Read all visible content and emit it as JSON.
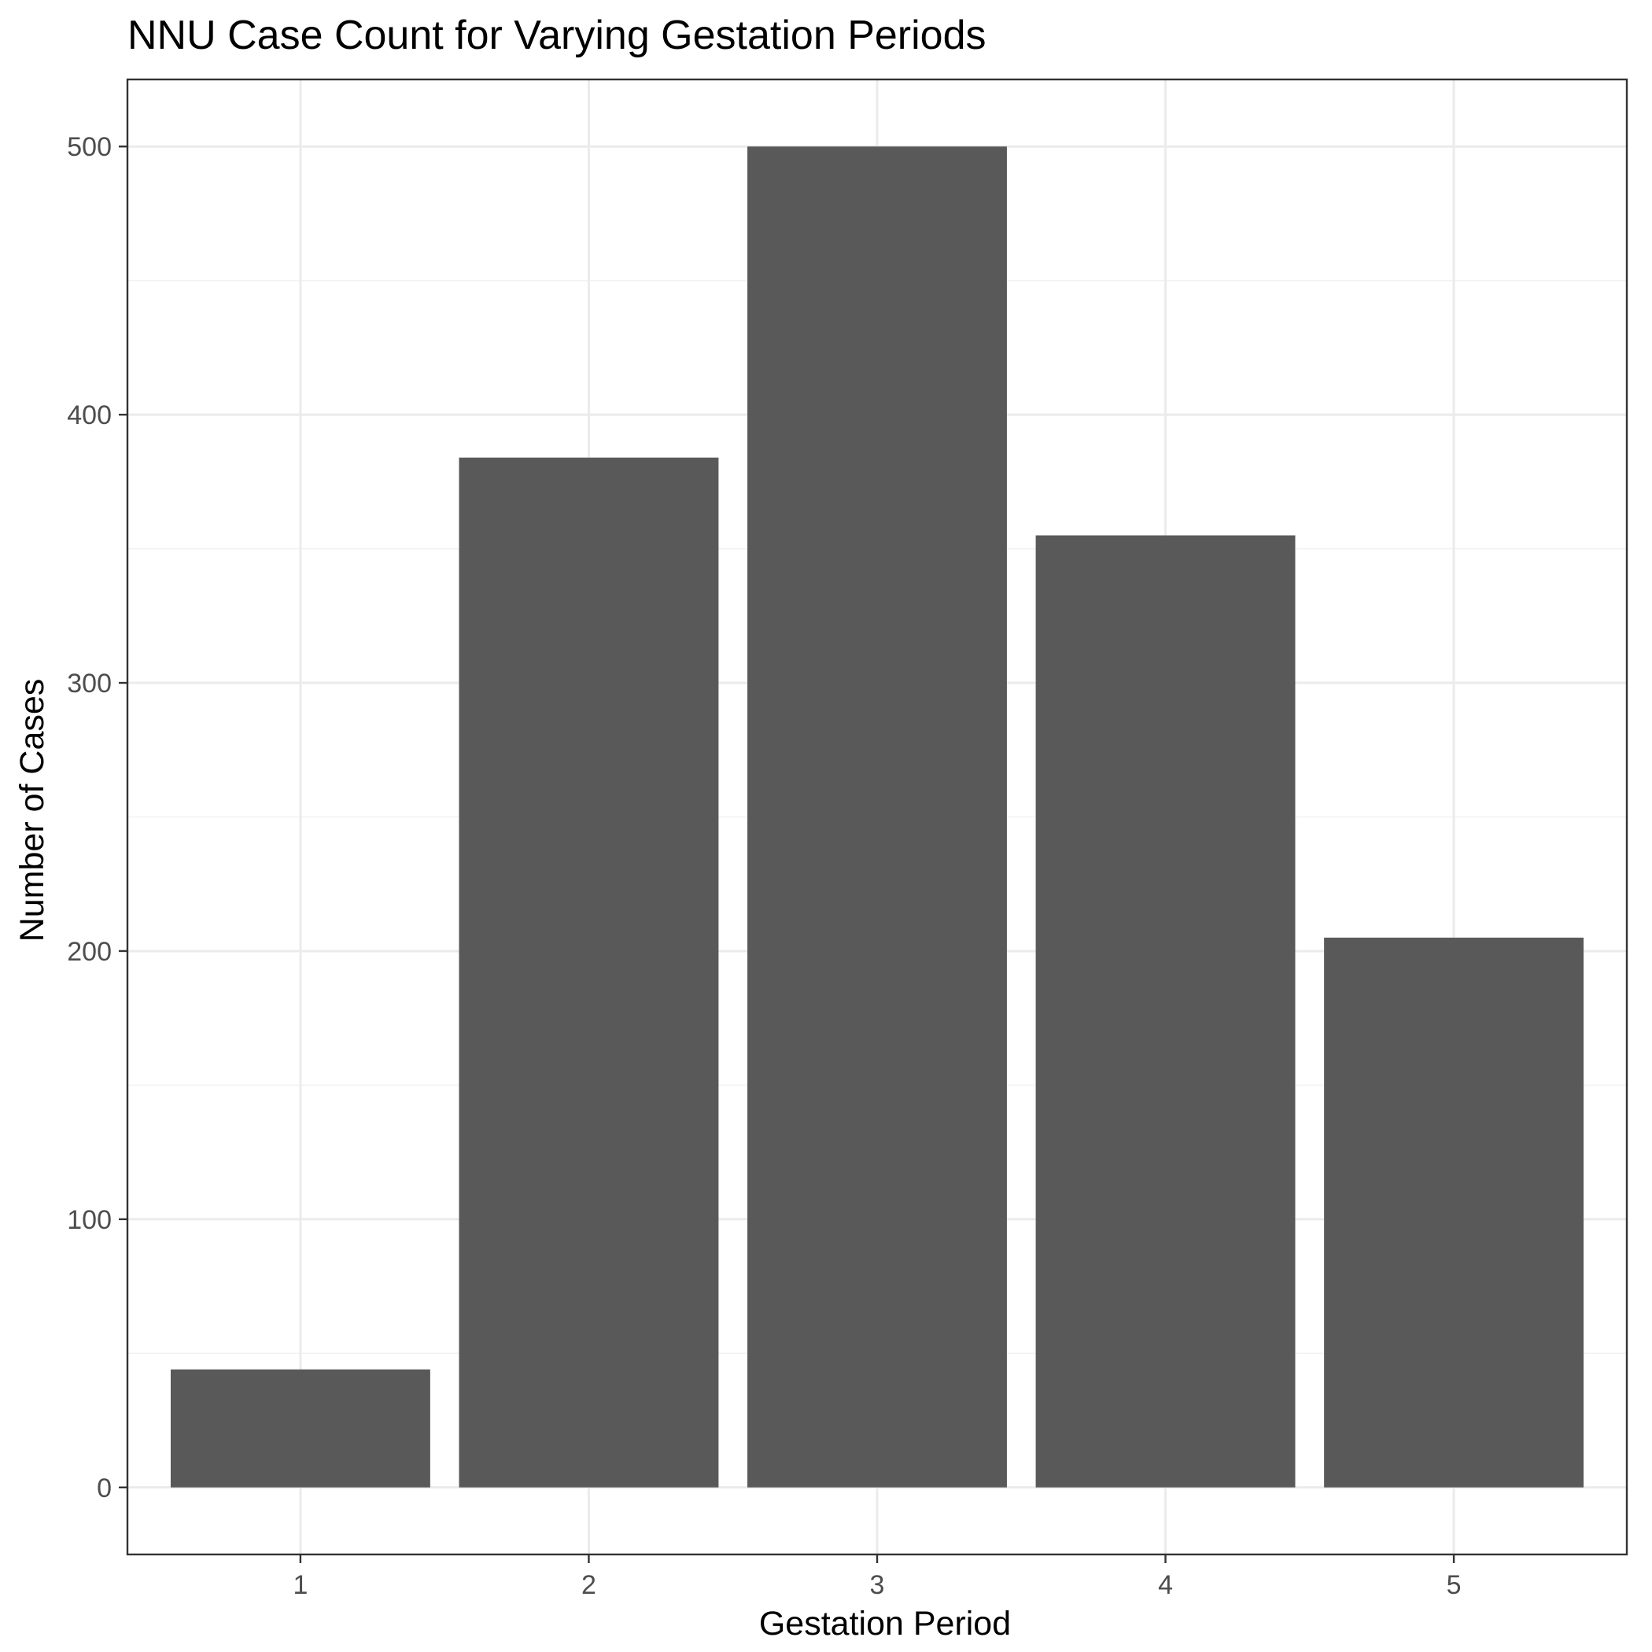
{
  "chart_data": {
    "type": "bar",
    "title": "NNU Case Count for Varying Gestation Periods",
    "xlabel": "Gestation Period",
    "ylabel": "Number of Cases",
    "categories": [
      "1",
      "2",
      "3",
      "4",
      "5"
    ],
    "values": [
      44,
      384,
      500,
      355,
      205
    ],
    "yticks": [
      "0",
      "100",
      "200",
      "300",
      "400",
      "500"
    ],
    "ylim": [
      -25,
      525
    ],
    "grid": true,
    "legend": "none",
    "colors": {
      "bar": "#595959",
      "grid": "#ebebeb",
      "panel_border": "#333333",
      "background": "#ffffff"
    }
  }
}
